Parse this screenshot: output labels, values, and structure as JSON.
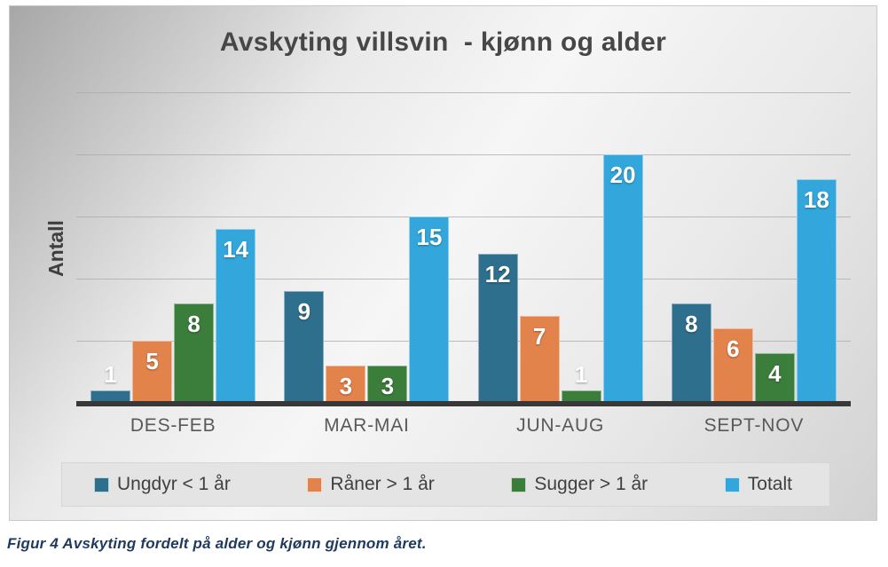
{
  "caption": "Figur 4 Avskyting fordelt på alder og kjønn gjennom året.",
  "chart_data": {
    "type": "bar",
    "title": "Avskyting villsvin  - kjønn og alder",
    "xlabel": "",
    "ylabel": "Antall",
    "categories": [
      "DES-FEB",
      "MAR-MAI",
      "JUN-AUG",
      "SEPT-NOV"
    ],
    "series": [
      {
        "name": "Ungdyr < 1 år",
        "color": "#2F6F8E",
        "values": [
          1,
          9,
          12,
          8
        ]
      },
      {
        "name": "Råner > 1 år",
        "color": "#E3834C",
        "values": [
          5,
          3,
          7,
          6
        ]
      },
      {
        "name": "Sugger > 1 år",
        "color": "#3B7D3B",
        "values": [
          8,
          3,
          1,
          4
        ]
      },
      {
        "name": "Totalt",
        "color": "#33A7DC",
        "values": [
          14,
          15,
          20,
          18
        ]
      }
    ],
    "ylim": [
      0,
      25
    ],
    "grid_step": 5,
    "grid": "on",
    "y_tick_labels_shown": false,
    "legend_position": "bottom",
    "data_labels": "on",
    "colors": {
      "axis_line": "#383838",
      "gridline": "#a9a9a9",
      "title_text": "#474747",
      "category_text": "#595959",
      "caption_text": "#1f3a5f",
      "legend_background": "#e4e4e4"
    }
  }
}
